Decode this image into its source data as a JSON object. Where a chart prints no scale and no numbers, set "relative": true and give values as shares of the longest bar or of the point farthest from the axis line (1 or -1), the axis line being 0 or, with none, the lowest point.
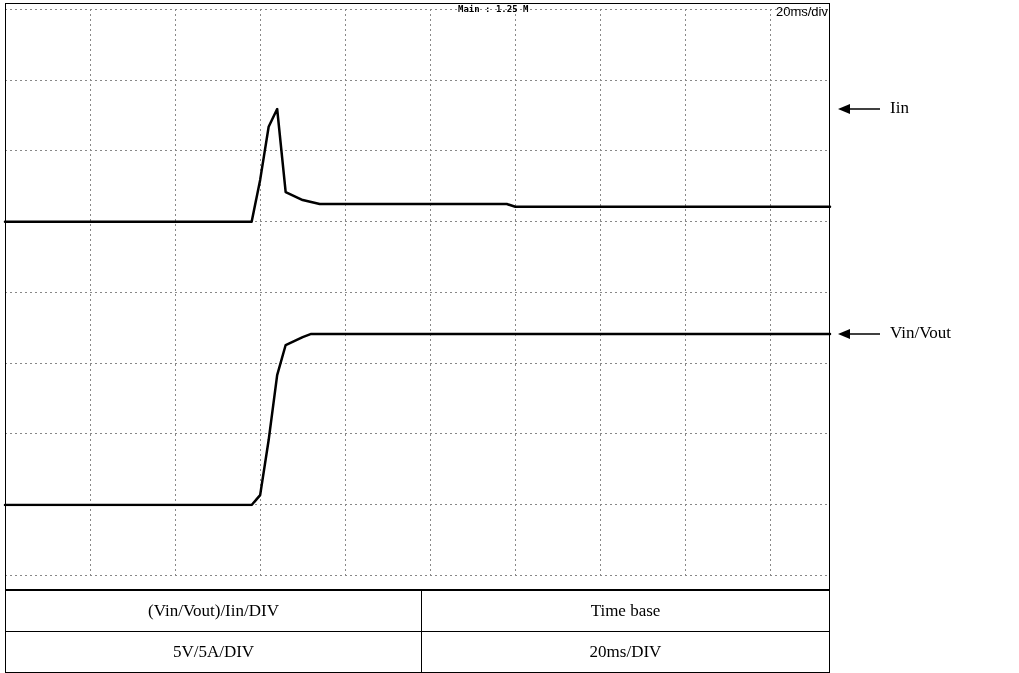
{
  "chart_data": {
    "type": "line",
    "relative": true,
    "grid": true,
    "legend": "right",
    "categories": [
      null,
      null,
      null,
      null,
      null,
      null,
      null,
      null,
      null,
      null,
      null,
      null,
      null,
      null,
      null,
      null,
      null,
      null,
      null,
      null,
      null,
      null,
      null,
      null,
      null,
      null,
      null,
      null,
      null,
      null,
      null,
      null,
      null,
      null,
      null,
      null,
      null,
      null,
      null,
      null,
      null,
      null,
      null,
      null,
      null,
      null,
      null,
      null,
      null,
      null,
      null,
      null,
      null,
      null,
      null,
      null,
      null,
      null,
      null,
      null,
      null,
      null,
      null,
      null,
      null,
      null,
      null,
      null,
      null,
      null,
      null,
      null,
      null,
      null,
      null,
      null,
      null,
      null,
      null,
      null,
      null,
      null,
      null,
      null,
      null,
      null,
      null,
      null,
      null,
      null,
      null,
      null,
      null,
      null,
      null,
      null,
      null,
      null
    ],
    "series": [
      {
        "name": "Iin",
        "color": "#000000",
        "values": [
          0.715,
          0.715,
          0.715,
          0.715,
          0.715,
          0.715,
          0.715,
          0.715,
          0.715,
          0.715,
          0.715,
          0.715,
          0.715,
          0.715,
          0.715,
          0.715,
          0.715,
          0.715,
          0.715,
          0.715,
          0.715,
          0.715,
          0.715,
          0.715,
          0.715,
          0.715,
          0.715,
          0.715,
          0.715,
          0.715,
          0.821,
          0.955,
          1,
          0.79,
          0.78,
          0.77,
          0.765,
          0.76,
          0.76,
          0.76,
          0.76,
          0.76,
          0.76,
          0.76,
          0.76,
          0.76,
          0.76,
          0.76,
          0.76,
          0.76,
          0.76,
          0.76,
          0.76,
          0.76,
          0.76,
          0.76,
          0.76,
          0.76,
          0.76,
          0.76,
          0.753,
          0.753,
          0.753,
          0.753,
          0.753,
          0.753,
          0.753,
          0.753,
          0.753,
          0.753,
          0.753,
          0.753,
          0.753,
          0.753,
          0.753,
          0.753,
          0.753,
          0.753,
          0.753,
          0.753,
          0.753,
          0.753,
          0.753,
          0.753,
          0.753,
          0.753,
          0.753,
          0.753,
          0.753,
          0.753,
          0.753,
          0.753,
          0.753,
          0.753,
          0.753,
          0.753,
          0.753,
          0.753
        ]
      },
      {
        "name": "Vin/Vout",
        "color": "#000000",
        "values": [
          0,
          0,
          0,
          0,
          0,
          0,
          0,
          0,
          0,
          0,
          0,
          0,
          0,
          0,
          0,
          0,
          0,
          0,
          0,
          0,
          0,
          0,
          0,
          0,
          0,
          0,
          0,
          0,
          0,
          0,
          0.025,
          0.164,
          0.328,
          0.404,
          0.414,
          0.424,
          0.432,
          0.432,
          0.432,
          0.432,
          0.432,
          0.432,
          0.432,
          0.432,
          0.432,
          0.432,
          0.432,
          0.432,
          0.432,
          0.432,
          0.432,
          0.432,
          0.432,
          0.432,
          0.432,
          0.432,
          0.432,
          0.432,
          0.432,
          0.432,
          0.432,
          0.432,
          0.432,
          0.432,
          0.432,
          0.432,
          0.432,
          0.432,
          0.432,
          0.432,
          0.432,
          0.432,
          0.432,
          0.432,
          0.432,
          0.432,
          0.432,
          0.432,
          0.432,
          0.432,
          0.432,
          0.432,
          0.432,
          0.432,
          0.432,
          0.432,
          0.432,
          0.432,
          0.432,
          0.432,
          0.432,
          0.432,
          0.432,
          0.432,
          0.432,
          0.432,
          0.432,
          0.432
        ]
      }
    ],
    "annotations": [
      "Main : 1.25 M",
      "20ms/div",
      "(Vin/Vout)/Iin/DIV",
      "Time base",
      "5V/5A/DIV",
      "20ms/DIV"
    ]
  }
}
